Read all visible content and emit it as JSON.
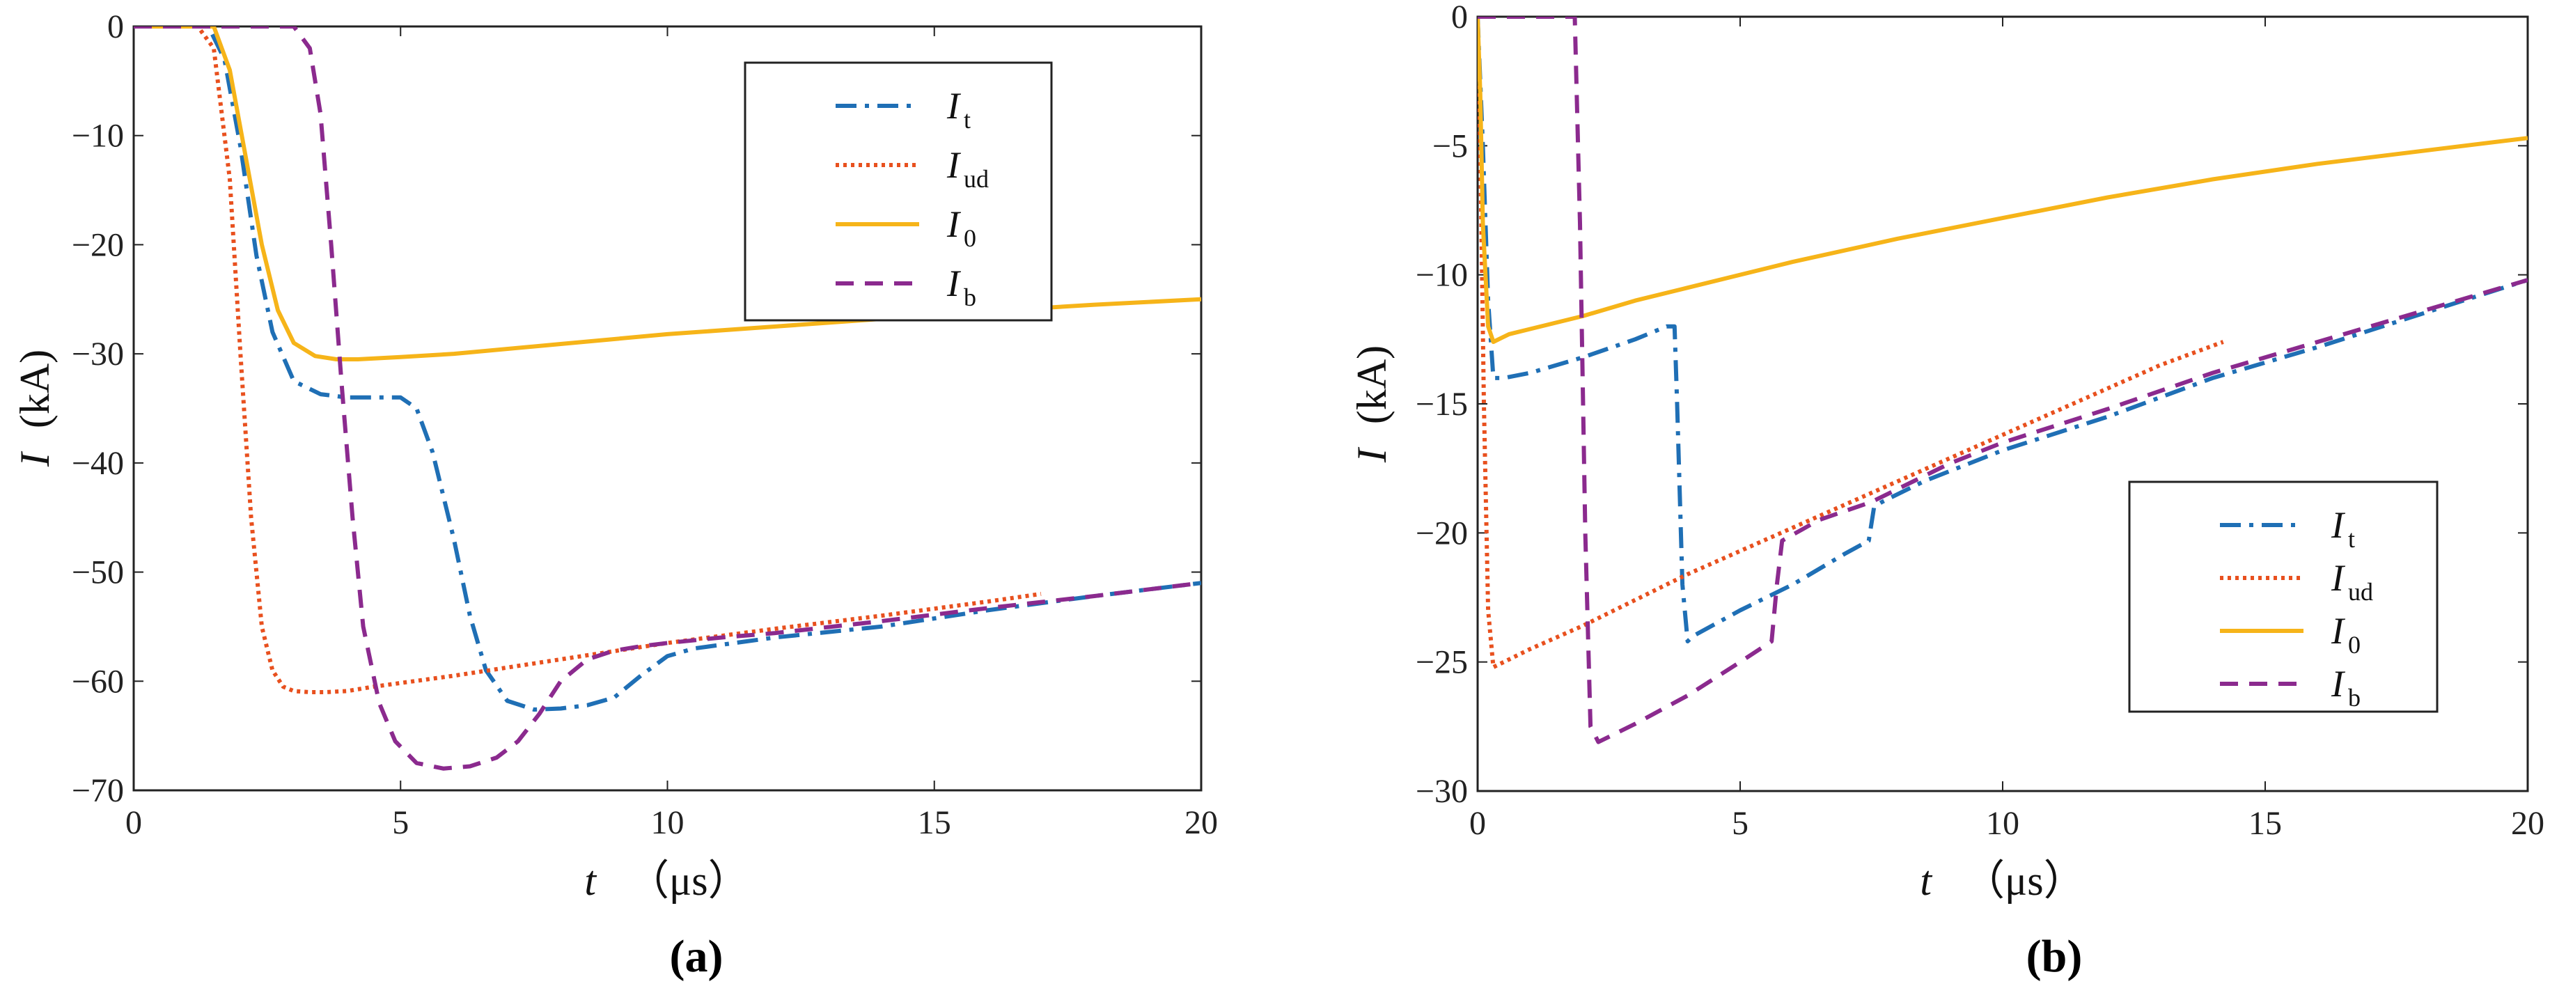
{
  "figure": {
    "panels": [
      "(a)",
      "(b)"
    ]
  },
  "chart_data": [
    {
      "type": "line",
      "caption": "(a)",
      "xlabel_symbol": "t",
      "xlabel_unit": "（μs）",
      "ylabel_symbol": "I",
      "ylabel_unit": "(kA)",
      "xlim": [
        0,
        20
      ],
      "ylim": [
        -70,
        0
      ],
      "xticks": [
        0,
        5,
        10,
        15,
        20
      ],
      "yticks": [
        0,
        -10,
        -20,
        -30,
        -40,
        -50,
        -60,
        -70
      ],
      "legend_position": "top-right",
      "series": [
        {
          "name": "I",
          "sub": "t",
          "color": "#1f6fb5",
          "dash": "30,12,6,12",
          "x": [
            0,
            1.4,
            1.7,
            2.0,
            2.3,
            2.6,
            3.0,
            3.5,
            4.0,
            4.5,
            5.0,
            5.3,
            5.6,
            6.0,
            6.3,
            6.6,
            7.0,
            7.5,
            8.0,
            8.5,
            9.0,
            9.5,
            10.0,
            10.5,
            12,
            14,
            16,
            18,
            20
          ],
          "y": [
            0,
            0,
            -3,
            -11,
            -21,
            -28,
            -32.5,
            -33.7,
            -34,
            -34,
            -34,
            -35,
            -39,
            -47,
            -54,
            -59,
            -61.8,
            -62.6,
            -62.5,
            -62.2,
            -61.5,
            -59.5,
            -57.7,
            -57,
            -56,
            -55,
            -53.5,
            -52.2,
            -51
          ]
        },
        {
          "name": "I",
          "sub": "ud",
          "color": "#e8501e",
          "dash": "5,6",
          "x": [
            0,
            1.2,
            1.5,
            1.8,
            2.0,
            2.2,
            2.4,
            2.6,
            2.8,
            3.0,
            3.3,
            3.6,
            4.0,
            4.5,
            6,
            8,
            10,
            12,
            14,
            16,
            17
          ],
          "y": [
            0,
            0,
            -2,
            -14,
            -30,
            -45,
            -55,
            -59,
            -60.5,
            -60.9,
            -61,
            -61,
            -60.9,
            -60.5,
            -59.5,
            -58,
            -56.5,
            -55.2,
            -54,
            -52.7,
            -52
          ]
        },
        {
          "name": "I",
          "sub": "0",
          "color": "#f6b419",
          "dash": "",
          "x": [
            0,
            1.5,
            1.8,
            2.1,
            2.4,
            2.7,
            3.0,
            3.4,
            3.8,
            4.2,
            5,
            6,
            8,
            10,
            12,
            14,
            16,
            18,
            20
          ],
          "y": [
            0,
            0,
            -4,
            -12,
            -20,
            -26,
            -29,
            -30.2,
            -30.5,
            -30.5,
            -30.3,
            -30,
            -29.1,
            -28.2,
            -27.5,
            -26.8,
            -26.1,
            -25.5,
            -25
          ]
        },
        {
          "name": "I",
          "sub": "b",
          "color": "#8b2a8e",
          "dash": "26,16",
          "x": [
            0,
            3.0,
            3.3,
            3.5,
            3.7,
            3.9,
            4.1,
            4.3,
            4.6,
            4.9,
            5.3,
            5.8,
            6.3,
            6.8,
            7.2,
            7.6,
            8.0,
            8.5,
            9.0,
            9.5,
            10.0,
            11,
            12,
            14,
            16,
            18,
            20
          ],
          "y": [
            0,
            0,
            -2,
            -8,
            -20,
            -33,
            -45,
            -55,
            -62,
            -65.5,
            -67.5,
            -68,
            -67.8,
            -67,
            -65.5,
            -63,
            -60,
            -58,
            -57.2,
            -56.8,
            -56.5,
            -56,
            -55.6,
            -54.5,
            -53.3,
            -52.2,
            -51
          ]
        }
      ]
    },
    {
      "type": "line",
      "caption": "(b)",
      "xlabel_symbol": "t",
      "xlabel_unit": "（μs）",
      "ylabel_symbol": "I",
      "ylabel_unit": "(kA)",
      "xlim": [
        0,
        20
      ],
      "ylim": [
        -30,
        0
      ],
      "xticks": [
        0,
        5,
        10,
        15,
        20
      ],
      "yticks": [
        0,
        -5,
        -10,
        -15,
        -20,
        -25,
        -30
      ],
      "legend_position": "lower-right",
      "series": [
        {
          "name": "I",
          "sub": "t",
          "color": "#1f6fb5",
          "dash": "30,12,6,12",
          "x": [
            0,
            0.1,
            0.2,
            0.3,
            0.5,
            1.0,
            2.0,
            3.0,
            3.6,
            3.75,
            3.8,
            3.9,
            4.0,
            4.1,
            5,
            6,
            7,
            7.45,
            7.55,
            7.7,
            8.5,
            10,
            12,
            14,
            16,
            18,
            20
          ],
          "y": [
            0,
            -5,
            -11,
            -14,
            -14,
            -13.8,
            -13.2,
            -12.5,
            -12,
            -12,
            -15,
            -22,
            -24.2,
            -24,
            -23,
            -22,
            -20.8,
            -20.3,
            -19,
            -18.8,
            -18,
            -16.8,
            -15.5,
            -14,
            -12.8,
            -11.5,
            -10.2
          ]
        },
        {
          "name": "I",
          "sub": "ud",
          "color": "#e8501e",
          "dash": "5,6",
          "x": [
            0,
            0.05,
            0.12,
            0.2,
            0.3,
            0.5,
            1,
            2,
            3,
            4,
            5,
            6,
            7,
            8,
            9,
            10,
            11,
            12,
            13,
            14.2
          ],
          "y": [
            0,
            -5,
            -15,
            -23,
            -25.2,
            -25,
            -24.5,
            -23.6,
            -22.6,
            -21.6,
            -20.7,
            -19.8,
            -18.9,
            -18,
            -17.1,
            -16.2,
            -15.3,
            -14.4,
            -13.5,
            -12.6
          ]
        },
        {
          "name": "I",
          "sub": "0",
          "color": "#f6b419",
          "dash": "",
          "x": [
            0,
            0.05,
            0.1,
            0.2,
            0.3,
            0.6,
            1,
            2,
            3,
            4,
            6,
            8,
            10,
            12,
            14,
            16,
            18,
            20
          ],
          "y": [
            0,
            -3,
            -8,
            -12,
            -12.6,
            -12.3,
            -12.1,
            -11.6,
            -11,
            -10.5,
            -9.5,
            -8.6,
            -7.8,
            -7,
            -6.3,
            -5.7,
            -5.2,
            -4.7
          ]
        },
        {
          "name": "I",
          "sub": "b",
          "color": "#8b2a8e",
          "dash": "26,16",
          "x": [
            0,
            1.85,
            1.95,
            2.05,
            2.15,
            2.3,
            3,
            4,
            5,
            5.6,
            5.7,
            5.8,
            6.5,
            7.5,
            8,
            9,
            10,
            12,
            14,
            16,
            18,
            20
          ],
          "y": [
            0,
            0,
            -8,
            -20,
            -27.5,
            -28.1,
            -27.4,
            -26.3,
            -25,
            -24.2,
            -22,
            -20.3,
            -19.5,
            -18.8,
            -18.3,
            -17.3,
            -16.5,
            -15.2,
            -13.8,
            -12.6,
            -11.4,
            -10.2
          ]
        }
      ]
    }
  ]
}
